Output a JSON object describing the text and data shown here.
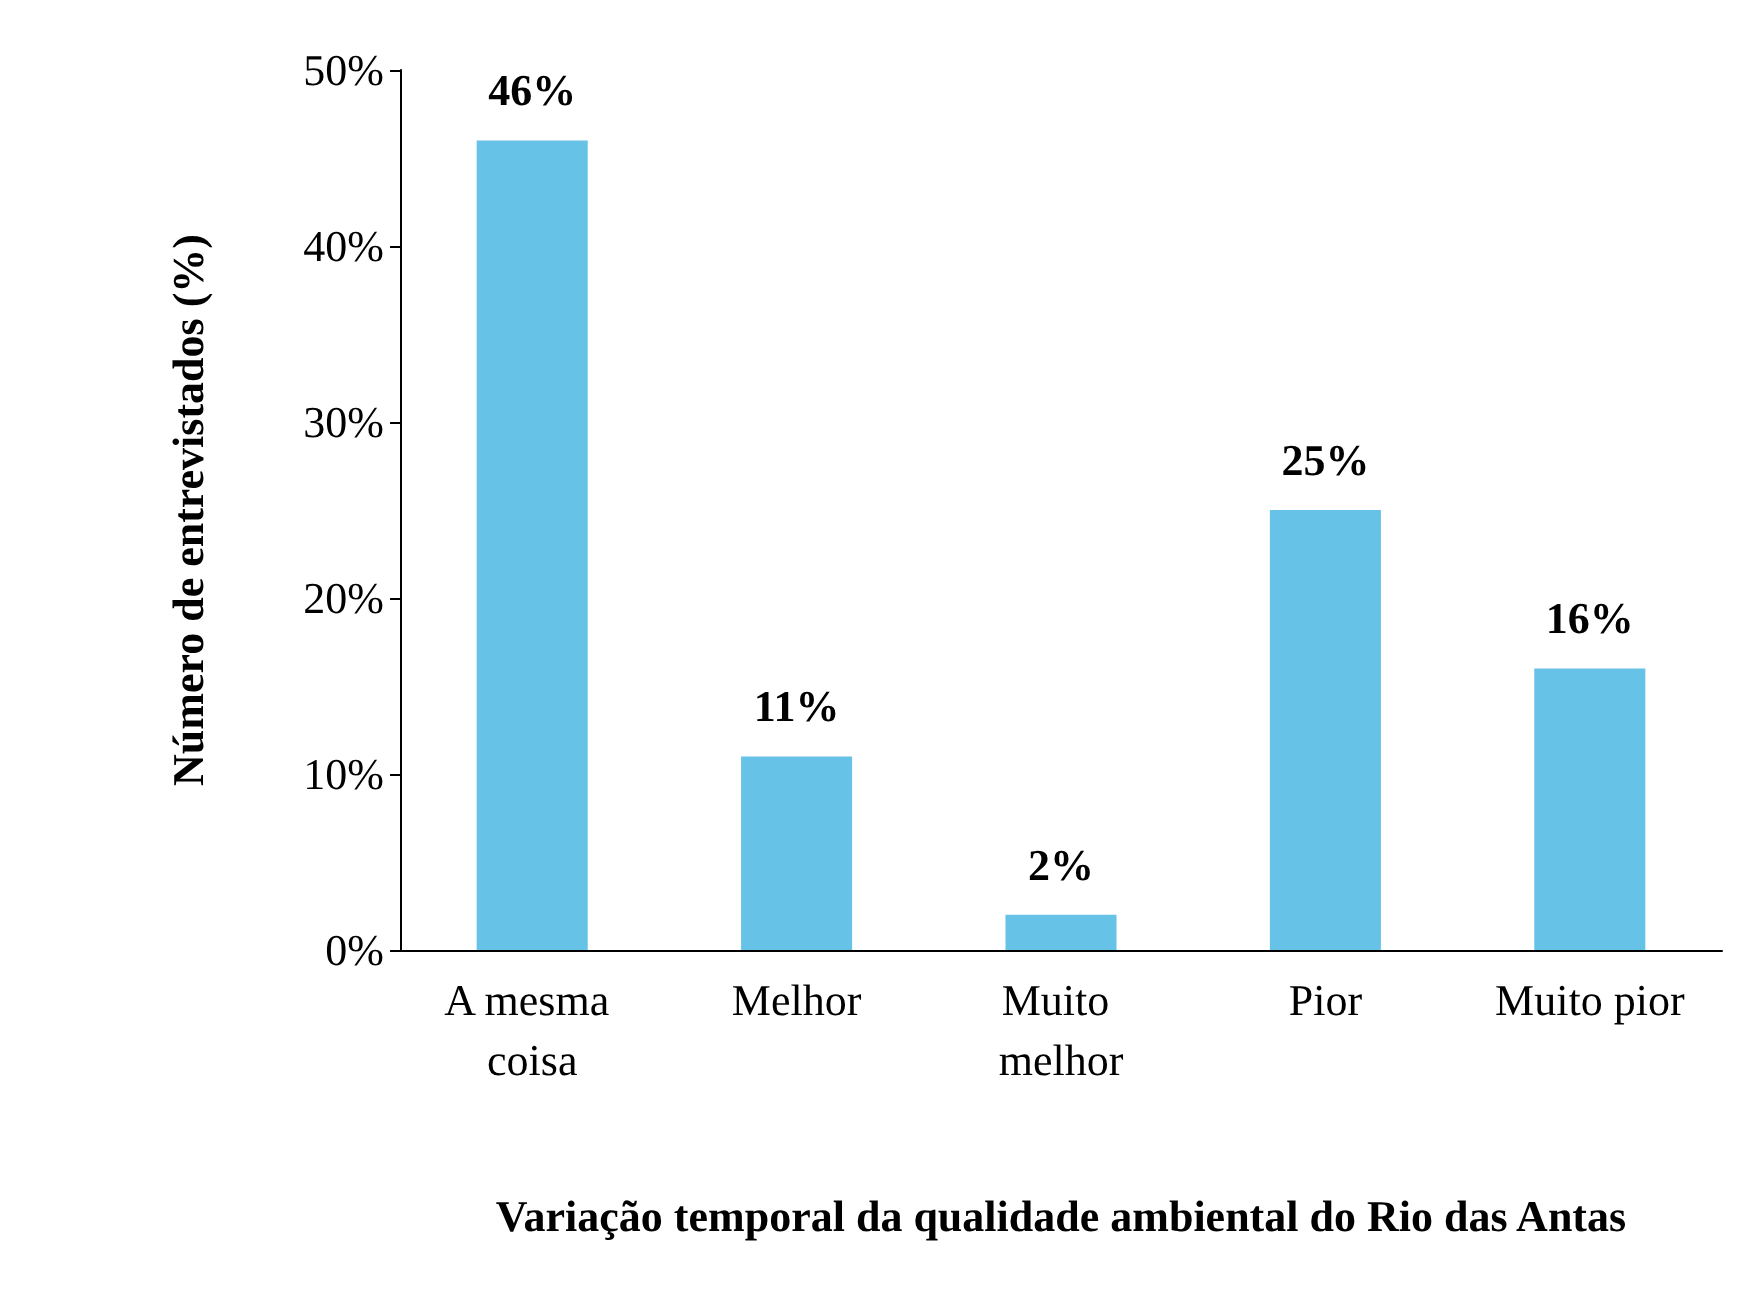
{
  "chart_data": {
    "type": "bar",
    "xlabel": "Variação temporal da qualidade ambiental do Rio das Antas",
    "ylabel": "Número de entrevistados (%)",
    "categories": [
      "A mesma coisa",
      "Melhor",
      "Muito melhor",
      "Pior",
      "Muito pior"
    ],
    "values": [
      46,
      11,
      2,
      25,
      16
    ],
    "value_labels": [
      "46%",
      "11%",
      "2%",
      "25%",
      "16%"
    ],
    "color": "#66c2e6",
    "ylim": [
      0,
      50
    ],
    "yticks": [
      {
        "value": 0,
        "label": "0%"
      },
      {
        "value": 10,
        "label": "10%"
      },
      {
        "value": 20,
        "label": "20%"
      },
      {
        "value": 30,
        "label": "30%"
      },
      {
        "value": 40,
        "label": "40%"
      },
      {
        "value": 50,
        "label": "50%"
      }
    ]
  }
}
